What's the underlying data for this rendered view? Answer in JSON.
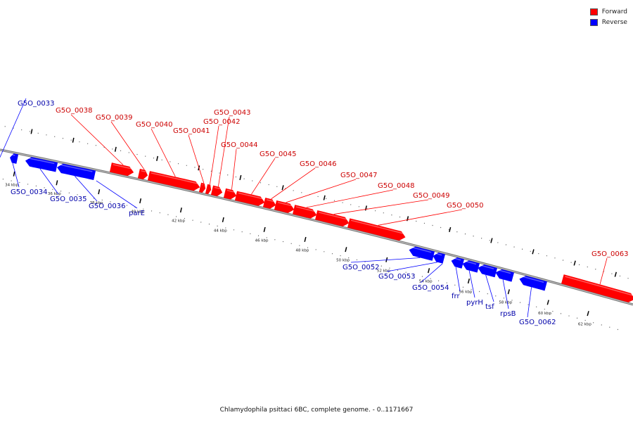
{
  "legend": [
    {
      "label": "Forward",
      "color": "#ff0000"
    },
    {
      "label": "Reverse",
      "color": "#0000ff"
    }
  ],
  "colors": {
    "forward": "#ff0000",
    "reverse": "#0000ff",
    "backbone": "#888888"
  },
  "ticks": [
    "34 kbp",
    "36 kbp",
    "38 kbp",
    "40 kbp",
    "42 kbp",
    "44 kbp",
    "46 kbp",
    "48 kbp",
    "50 kbp",
    "52 kbp",
    "54 kbp",
    "56 kbp",
    "58 kbp",
    "60 kbp",
    "62 kbp"
  ],
  "genes": [
    {
      "label": "G5O_0033",
      "strand": "reverse"
    },
    {
      "label": "G5O_0034",
      "strand": "reverse"
    },
    {
      "label": "G5O_0035",
      "strand": "reverse"
    },
    {
      "label": "G5O_0036",
      "strand": "reverse"
    },
    {
      "label": "parE",
      "strand": "reverse"
    },
    {
      "label": "G5O_0038",
      "strand": "forward"
    },
    {
      "label": "G5O_0039",
      "strand": "forward"
    },
    {
      "label": "G5O_0040",
      "strand": "forward"
    },
    {
      "label": "G5O_0041",
      "strand": "forward"
    },
    {
      "label": "G5O_0042",
      "strand": "forward"
    },
    {
      "label": "G5O_0043",
      "strand": "forward"
    },
    {
      "label": "G5O_0044",
      "strand": "forward"
    },
    {
      "label": "G5O_0045",
      "strand": "forward"
    },
    {
      "label": "G5O_0046",
      "strand": "forward"
    },
    {
      "label": "G5O_0047",
      "strand": "forward"
    },
    {
      "label": "G5O_0048",
      "strand": "forward"
    },
    {
      "label": "G5O_0049",
      "strand": "forward"
    },
    {
      "label": "G5O_0050",
      "strand": "forward"
    },
    {
      "label": "G5O_0052",
      "strand": "reverse"
    },
    {
      "label": "G5O_0053",
      "strand": "reverse"
    },
    {
      "label": "G5O_0054",
      "strand": "reverse"
    },
    {
      "label": "frr",
      "strand": "reverse"
    },
    {
      "label": "pyrH",
      "strand": "reverse"
    },
    {
      "label": "tsf",
      "strand": "reverse"
    },
    {
      "label": "rpsB",
      "strand": "reverse"
    },
    {
      "label": "G5O_0062",
      "strand": "reverse"
    },
    {
      "label": "G5O_0063",
      "strand": "forward"
    }
  ],
  "caption": "Chlamydophila psittaci 6BC, complete genome. - 0..1171667"
}
